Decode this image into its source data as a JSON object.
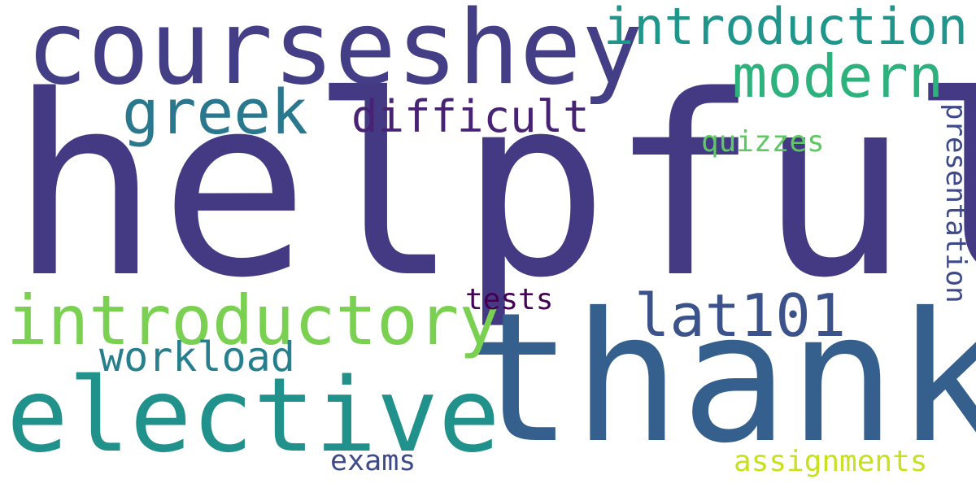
{
  "words": [
    {
      "key": "helpful",
      "text": "helpful",
      "color": "#443983"
    },
    {
      "key": "thank",
      "text": "thank",
      "color": "#355f8d"
    },
    {
      "key": "courseshey",
      "text": "courseshey",
      "color": "#433e85"
    },
    {
      "key": "elective",
      "text": "elective",
      "color": "#21918c"
    },
    {
      "key": "introductory",
      "text": "introductory",
      "color": "#7ad151"
    },
    {
      "key": "introduction",
      "text": "introduction",
      "color": "#1f958b"
    },
    {
      "key": "modern",
      "text": "modern",
      "color": "#2db27d"
    },
    {
      "key": "greek",
      "text": "greek",
      "color": "#2a788e"
    },
    {
      "key": "lat101",
      "text": "lat101",
      "color": "#3b528b"
    },
    {
      "key": "difficult",
      "text": "difficult",
      "color": "#482374"
    },
    {
      "key": "workload",
      "text": "workload",
      "color": "#277f8e"
    },
    {
      "key": "presentation",
      "text": "presentation",
      "color": "#3e4989"
    },
    {
      "key": "quizzes",
      "text": "quizzes",
      "color": "#5ec962"
    },
    {
      "key": "tests",
      "text": "tests",
      "color": "#440154"
    },
    {
      "key": "exams",
      "text": "exams",
      "color": "#3e4a89"
    },
    {
      "key": "assignments",
      "text": "assignments",
      "color": "#c8e020"
    }
  ]
}
